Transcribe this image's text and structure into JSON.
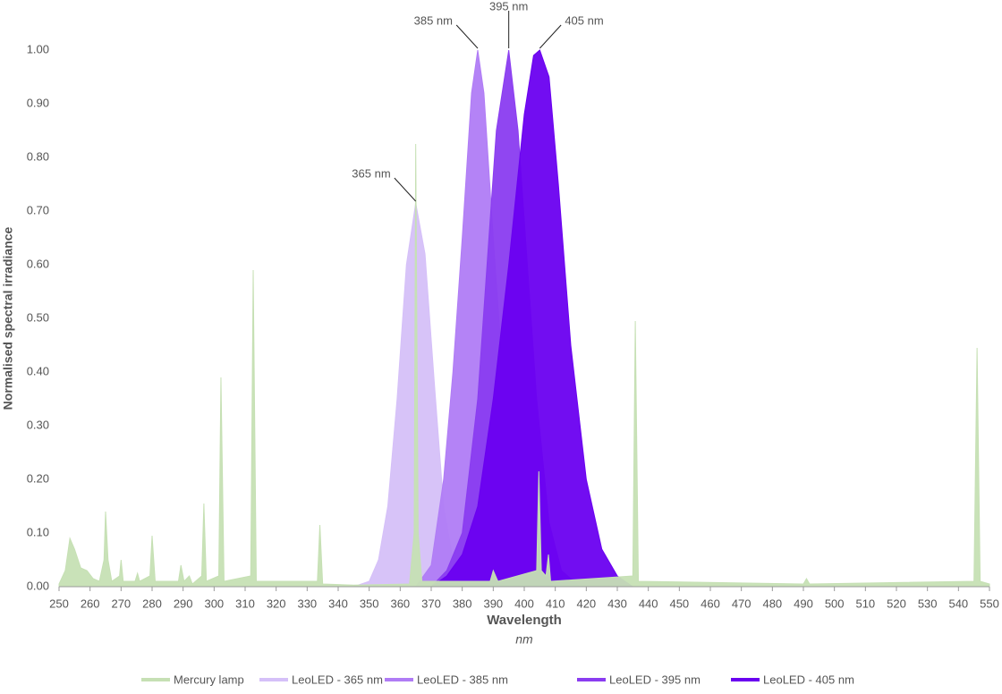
{
  "chart_data": {
    "type": "area",
    "x_label": "Wavelength",
    "x_unit": "nm",
    "y_label": "Normalised spectral irradiance",
    "xlim": [
      250,
      550
    ],
    "ylim": [
      0,
      1
    ],
    "xticks": [
      250,
      260,
      270,
      280,
      290,
      300,
      310,
      320,
      330,
      340,
      350,
      360,
      370,
      380,
      390,
      400,
      410,
      420,
      430,
      440,
      450,
      460,
      470,
      480,
      490,
      500,
      510,
      520,
      530,
      540,
      550
    ],
    "yticks": [
      {
        "value": 0,
        "label": "0.00"
      },
      {
        "value": 0.1,
        "label": "0.10"
      },
      {
        "value": 0.2,
        "label": "0.20"
      },
      {
        "value": 0.3,
        "label": "0.30"
      },
      {
        "value": 0.4,
        "label": "0.40"
      },
      {
        "value": 0.5,
        "label": "0.50"
      },
      {
        "value": 0.6,
        "label": "0.60"
      },
      {
        "value": 0.7,
        "label": "0.70"
      },
      {
        "value": 0.8,
        "label": "0.80"
      },
      {
        "value": 0.9,
        "label": "0.90"
      },
      {
        "value": 1,
        "label": "1.00"
      }
    ],
    "legend": "bottom",
    "series": [
      {
        "name": "Mercury lamp",
        "color": "#c6e0b4",
        "x": [
          250,
          252,
          253.5,
          255,
          257,
          259,
          261,
          263,
          264.5,
          265,
          265.8,
          267,
          269.5,
          270,
          270.7,
          274.5,
          275.3,
          276,
          279.3,
          280,
          281,
          288.5,
          289.3,
          290.3,
          292,
          293,
          296,
          296.7,
          297.5,
          301.5,
          302.2,
          303.2,
          311.8,
          312.6,
          313.6,
          333.3,
          334.1,
          335,
          345,
          363,
          364.5,
          365,
          365.8,
          367,
          389,
          390,
          391.5,
          404,
          404.7,
          405.5,
          407,
          407.8,
          408.5,
          435,
          435.8,
          436.8,
          490,
          491,
          492,
          545,
          546,
          547,
          550
        ],
        "values": [
          0.005,
          0.03,
          0.09,
          0.07,
          0.035,
          0.03,
          0.015,
          0.01,
          0.05,
          0.14,
          0.05,
          0.01,
          0.02,
          0.05,
          0.01,
          0.01,
          0.025,
          0.01,
          0.02,
          0.095,
          0.01,
          0.01,
          0.04,
          0.01,
          0.02,
          0.005,
          0.02,
          0.155,
          0.01,
          0.02,
          0.39,
          0.01,
          0.02,
          0.59,
          0.01,
          0.01,
          0.115,
          0.005,
          0.003,
          0.005,
          0.1,
          0.825,
          0.1,
          0.01,
          0.01,
          0.03,
          0.01,
          0.03,
          0.215,
          0.03,
          0.02,
          0.06,
          0.01,
          0.02,
          0.495,
          0.01,
          0.005,
          0.015,
          0.005,
          0.01,
          0.445,
          0.01,
          0.005
        ]
      },
      {
        "name": "LeoLED - 365 nm",
        "color": "#d5c0f8",
        "x": [
          345,
          350,
          353,
          356,
          359,
          362,
          365,
          368,
          371,
          374,
          377,
          380,
          385
        ],
        "values": [
          0,
          0.01,
          0.05,
          0.15,
          0.35,
          0.6,
          0.715,
          0.62,
          0.38,
          0.15,
          0.05,
          0.01,
          0
        ]
      },
      {
        "name": "LeoLED - 385 nm",
        "color": "#b07cf5",
        "x": [
          365,
          370,
          374,
          377,
          380,
          383,
          385,
          387,
          390,
          393,
          396,
          400,
          405,
          410
        ],
        "values": [
          0,
          0.04,
          0.2,
          0.4,
          0.65,
          0.92,
          1,
          0.92,
          0.65,
          0.4,
          0.22,
          0.07,
          0.01,
          0
        ]
      },
      {
        "name": "LeoLED - 395 nm",
        "color": "#8a3cf0",
        "x": [
          370,
          375,
          380,
          385,
          388,
          391,
          395,
          398,
          401,
          404,
          408,
          412,
          418
        ],
        "values": [
          0,
          0.03,
          0.1,
          0.35,
          0.6,
          0.85,
          1,
          0.85,
          0.6,
          0.35,
          0.12,
          0.03,
          0
        ]
      },
      {
        "name": "LeoLED - 405 nm",
        "color": "#6a00f0",
        "x": [
          370,
          375,
          380,
          385,
          390,
          395,
          400,
          403,
          405,
          408,
          411,
          415,
          420,
          425,
          430,
          435
        ],
        "values": [
          0,
          0.02,
          0.06,
          0.15,
          0.35,
          0.6,
          0.88,
          0.99,
          1,
          0.95,
          0.75,
          0.45,
          0.2,
          0.07,
          0.02,
          0
        ]
      }
    ],
    "annotations": [
      {
        "text": "365 nm",
        "x": 365,
        "y": 0.715
      },
      {
        "text": "385 nm",
        "x": 385,
        "y": 1
      },
      {
        "text": "395 nm",
        "x": 395,
        "y": 1
      },
      {
        "text": "405 nm",
        "x": 405,
        "y": 1
      }
    ]
  }
}
